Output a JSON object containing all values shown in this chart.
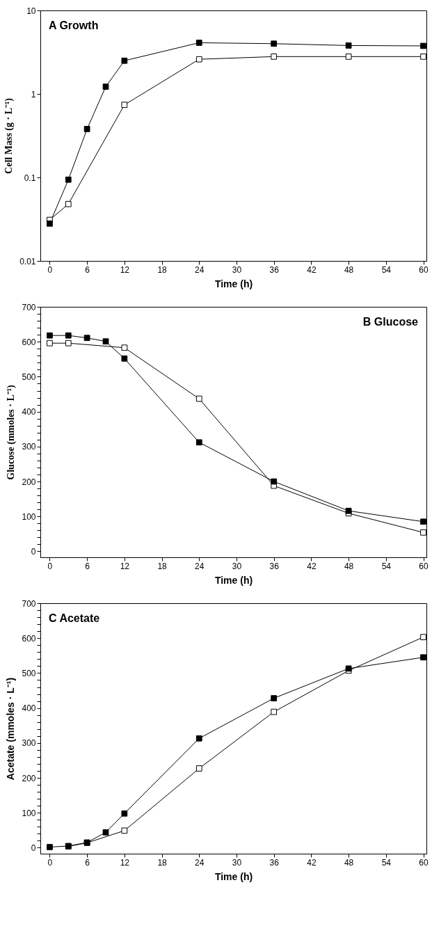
{
  "chart_data": [
    {
      "type": "line",
      "title": "A  Growth",
      "xlabel": "Time (h)",
      "ylabel": "Cell Mass (g · L⁻¹)",
      "log": "y",
      "marker": "square",
      "grid": false,
      "legend": false,
      "x": [
        0,
        3,
        6,
        9,
        12,
        24,
        36,
        48,
        60
      ],
      "xlim": [
        -1.5,
        60.5
      ],
      "xticks": [
        0,
        6,
        12,
        18,
        24,
        30,
        36,
        42,
        48,
        54,
        60
      ],
      "ylim": [
        0.01,
        10
      ],
      "yticks": [
        0.01,
        0.1,
        1,
        10
      ],
      "series": [
        {
          "color": "#000000",
          "values": [
            0.028,
            0.094,
            0.38,
            1.22,
            2.5,
            4.1,
            4.0,
            3.8,
            3.76
          ]
        },
        {
          "color": "#ffffff",
          "values": [
            0.031,
            0.048,
            null,
            null,
            0.74,
            2.6,
            2.8,
            2.8,
            2.8
          ]
        }
      ]
    },
    {
      "type": "line",
      "title": "B  Glucose",
      "xlabel": "Time (h)",
      "ylabel": "Glucose  (mmoles · L⁻¹)",
      "marker": "square",
      "grid": false,
      "legend": false,
      "x": [
        0,
        3,
        6,
        9,
        12,
        24,
        36,
        48,
        60
      ],
      "xlim": [
        -1.5,
        60.5
      ],
      "xticks": [
        0,
        6,
        12,
        18,
        24,
        30,
        36,
        42,
        48,
        54,
        60
      ],
      "ylim": [
        -17,
        700
      ],
      "yticks": [
        0,
        {
          "value": 20,
          "label": null
        },
        {
          "value": 40,
          "label": null
        },
        {
          "value": 60,
          "label": null
        },
        {
          "value": 80,
          "label": null
        },
        100,
        {
          "value": 120,
          "label": null
        },
        {
          "value": 140,
          "label": null
        },
        {
          "value": 160,
          "label": null
        },
        {
          "value": 180,
          "label": null
        },
        200,
        {
          "value": 220,
          "label": null
        },
        {
          "value": 240,
          "label": null
        },
        {
          "value": 260,
          "label": null
        },
        {
          "value": 280,
          "label": null
        },
        300,
        {
          "value": 320,
          "label": null
        },
        {
          "value": 340,
          "label": null
        },
        {
          "value": 360,
          "label": null
        },
        {
          "value": 380,
          "label": null
        },
        400,
        {
          "value": 420,
          "label": null
        },
        {
          "value": 440,
          "label": null
        },
        {
          "value": 460,
          "label": null
        },
        {
          "value": 480,
          "label": null
        },
        500,
        {
          "value": 520,
          "label": null
        },
        {
          "value": 540,
          "label": null
        },
        {
          "value": 560,
          "label": null
        },
        {
          "value": 580,
          "label": null
        },
        600,
        {
          "value": 620,
          "label": null
        },
        {
          "value": 640,
          "label": null
        },
        {
          "value": 660,
          "label": null
        },
        {
          "value": 680,
          "label": null
        },
        700
      ],
      "series": [
        {
          "color": "#000000",
          "values": [
            618,
            618,
            611,
            601,
            552,
            312,
            200,
            116,
            85
          ]
        },
        {
          "color": "#ffffff",
          "values": [
            596,
            596,
            null,
            null,
            583,
            437,
            188,
            109,
            54
          ]
        }
      ]
    },
    {
      "type": "line",
      "title": "C  Acetate",
      "xlabel": "Time (h)",
      "ylabel": "Acetate (mmoles · L⁻¹)",
      "marker": "square",
      "grid": false,
      "legend": false,
      "x": [
        0,
        3,
        6,
        9,
        12,
        24,
        36,
        48,
        60
      ],
      "xlim": [
        -1.5,
        60.5
      ],
      "xticks": [
        0,
        6,
        12,
        18,
        24,
        30,
        36,
        42,
        48,
        54,
        60
      ],
      "ylim": [
        -17,
        700
      ],
      "yticks": [
        0,
        {
          "value": 20,
          "label": null
        },
        {
          "value": 40,
          "label": null
        },
        {
          "value": 60,
          "label": null
        },
        {
          "value": 80,
          "label": null
        },
        100,
        {
          "value": 120,
          "label": null
        },
        {
          "value": 140,
          "label": null
        },
        {
          "value": 160,
          "label": null
        },
        {
          "value": 180,
          "label": null
        },
        200,
        {
          "value": 220,
          "label": null
        },
        {
          "value": 240,
          "label": null
        },
        {
          "value": 260,
          "label": null
        },
        {
          "value": 280,
          "label": null
        },
        300,
        {
          "value": 320,
          "label": null
        },
        {
          "value": 340,
          "label": null
        },
        {
          "value": 360,
          "label": null
        },
        {
          "value": 380,
          "label": null
        },
        400,
        {
          "value": 420,
          "label": null
        },
        {
          "value": 440,
          "label": null
        },
        {
          "value": 460,
          "label": null
        },
        {
          "value": 480,
          "label": null
        },
        500,
        {
          "value": 520,
          "label": null
        },
        {
          "value": 540,
          "label": null
        },
        {
          "value": 560,
          "label": null
        },
        {
          "value": 580,
          "label": null
        },
        600,
        {
          "value": 620,
          "label": null
        },
        {
          "value": 640,
          "label": null
        },
        {
          "value": 660,
          "label": null
        },
        {
          "value": 680,
          "label": null
        },
        700
      ],
      "series": [
        {
          "color": "#000000",
          "values": [
            2,
            5,
            15,
            44,
            98,
            313,
            428,
            513,
            545
          ]
        },
        {
          "color": "#ffffff",
          "values": [
            null,
            4,
            14,
            null,
            49,
            227,
            389,
            507,
            603
          ]
        }
      ]
    }
  ]
}
